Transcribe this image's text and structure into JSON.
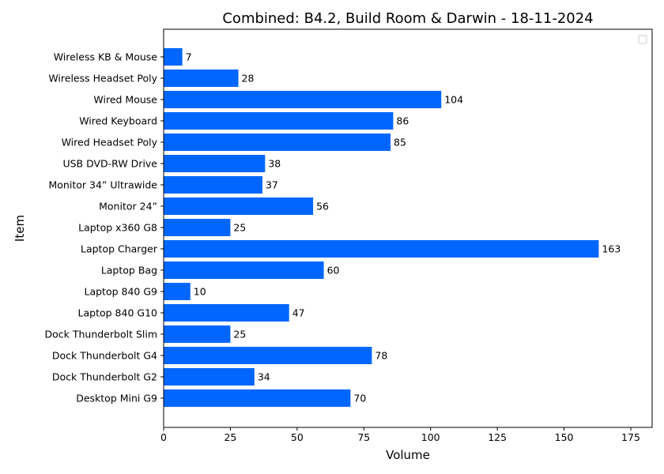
{
  "chart_data": {
    "type": "bar",
    "orientation": "horizontal",
    "title": "Combined: B4.2, Build Room & Darwin - 18-11-2024",
    "xlabel": "Volume",
    "ylabel": "Item",
    "xlim": [
      0,
      183
    ],
    "xticks": [
      0,
      25,
      50,
      75,
      100,
      125,
      150,
      175
    ],
    "grid": false,
    "legend": "top-right",
    "bar_color": "#0066ff",
    "categories": [
      "Desktop Mini G9",
      "Dock Thunderbolt G2",
      "Dock Thunderbolt G4",
      "Dock Thunderbolt Slim",
      "Laptop 840 G10",
      "Laptop 840 G9",
      "Laptop Bag",
      "Laptop Charger ",
      "Laptop x360 G8",
      "Monitor 24” ",
      "Monitor 34” Ultrawide",
      "USB DVD-RW Drive",
      "Wired Headset Poly",
      "Wired Keyboard",
      "Wired Mouse",
      "Wireless Headset Poly ",
      "Wireless KB & Mouse"
    ],
    "values": [
      70,
      34,
      78,
      25,
      47,
      10,
      60,
      163,
      25,
      56,
      37,
      38,
      85,
      86,
      104,
      28,
      7
    ]
  }
}
